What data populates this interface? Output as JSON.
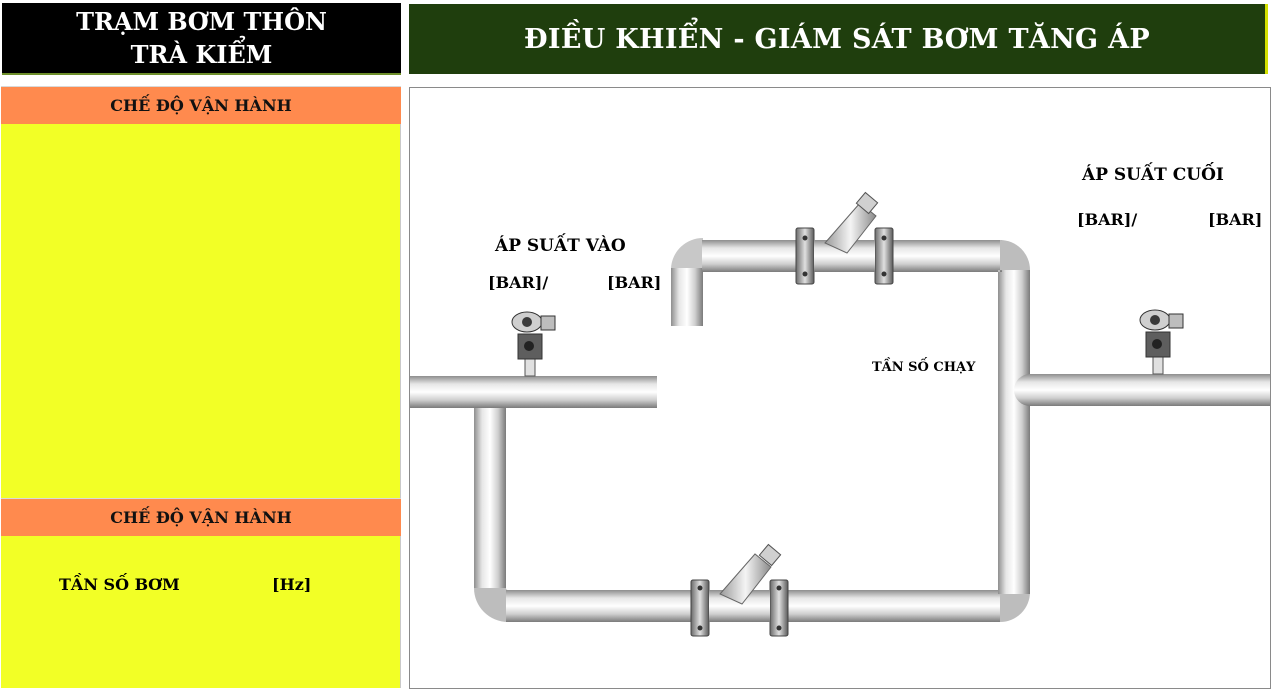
{
  "header": {
    "station_line1": "TRẠM BƠM THÔN",
    "station_line2": "TRÀ KIỂM",
    "title": "ĐIỀU KHIỂN - GIÁM SÁT BƠM TĂNG ÁP"
  },
  "left_panel": {
    "mode_header_1": "CHẾ ĐỘ VẬN HÀNH",
    "mode_header_2": "CHẾ ĐỘ VẬN HÀNH",
    "pump_freq_label": "TẦN SỐ BƠM",
    "pump_freq_unit": "[Hz]"
  },
  "diagram": {
    "inlet_pressure_label": "ÁP SUẤT VÀO",
    "inlet_unit_1": "[BAR]/",
    "inlet_unit_2": "[BAR]",
    "outlet_pressure_label": "ÁP SUẤT CUỐI",
    "outlet_unit_1": "[BAR]/",
    "outlet_unit_2": "[BAR]",
    "running_freq_label": "TẦN SỐ CHẠY"
  },
  "colors": {
    "title_bg": "#1f3e0d",
    "station_bg": "#000000",
    "panel_yellow": "#f2ff26",
    "mode_header_orange": "#ff8a4e"
  }
}
